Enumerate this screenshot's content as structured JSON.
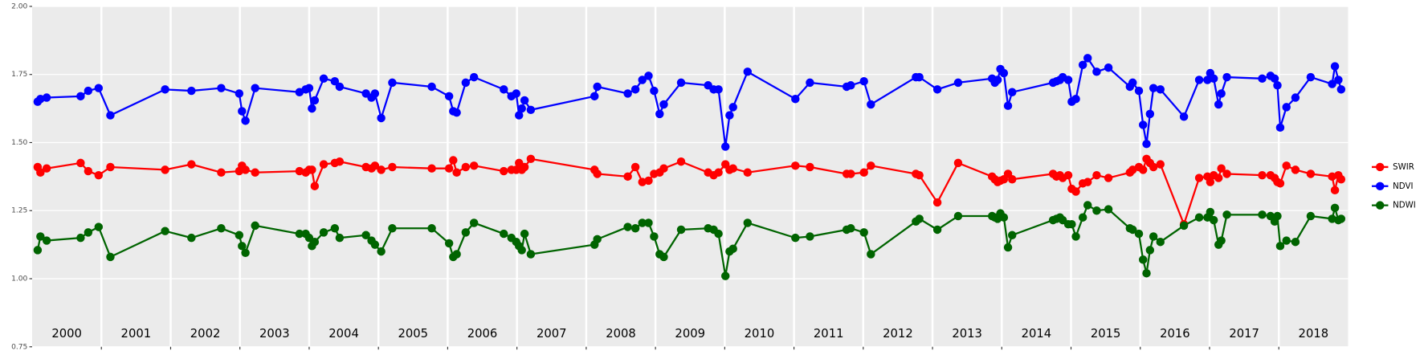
{
  "chart_data": {
    "type": "line",
    "x": [
      2000.08,
      2000.12,
      2000.21,
      2000.7,
      2000.81,
      2000.96,
      2001.13,
      2001.92,
      2002.3,
      2002.73,
      2002.99,
      2003.03,
      2003.08,
      2003.22,
      2003.86,
      2003.95,
      2004.0,
      2004.04,
      2004.08,
      2004.21,
      2004.37,
      2004.44,
      2004.82,
      2004.9,
      2004.95,
      2005.04,
      2005.2,
      2005.77,
      2006.02,
      2006.08,
      2006.13,
      2006.26,
      2006.38,
      2006.81,
      2006.92,
      2006.99,
      2007.03,
      2007.07,
      2007.11,
      2007.2,
      2008.12,
      2008.16,
      2008.6,
      2008.71,
      2008.81,
      2008.9,
      2008.98,
      2009.06,
      2009.12,
      2009.37,
      2009.76,
      2009.84,
      2009.91,
      2010.01,
      2010.07,
      2010.12,
      2010.33,
      2011.02,
      2011.23,
      2011.76,
      2011.82,
      2012.01,
      2012.11,
      2012.76,
      2012.81,
      2013.07,
      2013.37,
      2013.86,
      2013.9,
      2013.94,
      2013.98,
      2014.03,
      2014.09,
      2014.15,
      2014.74,
      2014.79,
      2014.84,
      2014.88,
      2014.96,
      2015.01,
      2015.07,
      2015.17,
      2015.24,
      2015.37,
      2015.54,
      2015.85,
      2015.89,
      2015.98,
      2016.04,
      2016.09,
      2016.14,
      2016.19,
      2016.29,
      2016.63,
      2016.85,
      2016.97,
      2017.01,
      2017.06,
      2017.13,
      2017.17,
      2017.25,
      2017.76,
      2017.88,
      2017.94,
      2017.98,
      2018.02,
      2018.11,
      2018.24,
      2018.46,
      2018.77,
      2018.81,
      2018.86,
      2018.9
    ],
    "series": [
      {
        "name": "SWIR",
        "color": "#ff0000",
        "values": [
          1.41,
          1.39,
          1.405,
          1.425,
          1.395,
          1.38,
          1.41,
          1.4,
          1.42,
          1.39,
          1.395,
          1.415,
          1.4,
          1.39,
          1.395,
          1.39,
          1.4,
          1.4,
          1.34,
          1.42,
          1.425,
          1.43,
          1.41,
          1.405,
          1.415,
          1.4,
          1.41,
          1.405,
          1.405,
          1.435,
          1.39,
          1.41,
          1.415,
          1.395,
          1.4,
          1.4,
          1.425,
          1.4,
          1.41,
          1.44,
          1.4,
          1.385,
          1.375,
          1.41,
          1.355,
          1.36,
          1.385,
          1.39,
          1.405,
          1.43,
          1.39,
          1.38,
          1.39,
          1.42,
          1.4,
          1.405,
          1.39,
          1.415,
          1.41,
          1.385,
          1.385,
          1.39,
          1.415,
          1.385,
          1.38,
          1.28,
          1.425,
          1.375,
          1.365,
          1.355,
          1.36,
          1.365,
          1.385,
          1.365,
          1.385,
          1.375,
          1.38,
          1.37,
          1.38,
          1.33,
          1.32,
          1.35,
          1.355,
          1.38,
          1.37,
          1.39,
          1.4,
          1.41,
          1.4,
          1.44,
          1.425,
          1.41,
          1.42,
          1.2,
          1.37,
          1.375,
          1.355,
          1.38,
          1.37,
          1.405,
          1.385,
          1.38,
          1.38,
          1.37,
          1.355,
          1.35,
          1.415,
          1.4,
          1.385,
          1.375,
          1.325,
          1.38,
          1.365
        ]
      },
      {
        "name": "NDVI",
        "color": "#0000ff",
        "values": [
          1.65,
          1.66,
          1.665,
          1.67,
          1.69,
          1.7,
          1.6,
          1.695,
          1.69,
          1.7,
          1.68,
          1.615,
          1.58,
          1.7,
          1.685,
          1.695,
          1.7,
          1.625,
          1.655,
          1.735,
          1.725,
          1.705,
          1.68,
          1.665,
          1.68,
          1.59,
          1.72,
          1.705,
          1.67,
          1.615,
          1.61,
          1.72,
          1.74,
          1.695,
          1.67,
          1.68,
          1.6,
          1.625,
          1.655,
          1.62,
          1.67,
          1.705,
          1.68,
          1.695,
          1.73,
          1.745,
          1.69,
          1.605,
          1.64,
          1.72,
          1.71,
          1.695,
          1.695,
          1.485,
          1.6,
          1.63,
          1.76,
          1.66,
          1.72,
          1.705,
          1.71,
          1.725,
          1.64,
          1.74,
          1.74,
          1.695,
          1.72,
          1.735,
          1.72,
          1.73,
          1.77,
          1.755,
          1.635,
          1.685,
          1.72,
          1.725,
          1.73,
          1.74,
          1.73,
          1.65,
          1.66,
          1.785,
          1.81,
          1.76,
          1.775,
          1.705,
          1.72,
          1.69,
          1.565,
          1.495,
          1.605,
          1.7,
          1.695,
          1.595,
          1.73,
          1.73,
          1.755,
          1.735,
          1.64,
          1.68,
          1.74,
          1.735,
          1.745,
          1.735,
          1.71,
          1.555,
          1.63,
          1.665,
          1.74,
          1.715,
          1.78,
          1.73,
          1.695
        ]
      },
      {
        "name": "NDWI",
        "color": "#006400",
        "values": [
          1.105,
          1.155,
          1.14,
          1.15,
          1.17,
          1.19,
          1.08,
          1.175,
          1.15,
          1.185,
          1.16,
          1.12,
          1.095,
          1.195,
          1.165,
          1.165,
          1.15,
          1.12,
          1.135,
          1.17,
          1.185,
          1.15,
          1.16,
          1.14,
          1.125,
          1.1,
          1.185,
          1.185,
          1.13,
          1.08,
          1.09,
          1.17,
          1.205,
          1.165,
          1.15,
          1.135,
          1.12,
          1.105,
          1.165,
          1.09,
          1.125,
          1.145,
          1.19,
          1.185,
          1.205,
          1.205,
          1.155,
          1.09,
          1.08,
          1.18,
          1.185,
          1.18,
          1.165,
          1.01,
          1.1,
          1.11,
          1.205,
          1.15,
          1.155,
          1.18,
          1.185,
          1.17,
          1.09,
          1.21,
          1.22,
          1.18,
          1.23,
          1.23,
          1.225,
          1.22,
          1.24,
          1.225,
          1.115,
          1.16,
          1.215,
          1.22,
          1.225,
          1.215,
          1.2,
          1.2,
          1.155,
          1.225,
          1.27,
          1.25,
          1.255,
          1.185,
          1.18,
          1.165,
          1.07,
          1.02,
          1.105,
          1.155,
          1.135,
          1.195,
          1.225,
          1.225,
          1.245,
          1.215,
          1.125,
          1.14,
          1.235,
          1.235,
          1.23,
          1.21,
          1.23,
          1.12,
          1.14,
          1.135,
          1.23,
          1.22,
          1.26,
          1.215,
          1.22
        ]
      }
    ],
    "xlim": [
      2000,
      2019
    ],
    "xticks": [
      2001,
      2002,
      2003,
      2004,
      2005,
      2006,
      2007,
      2008,
      2009,
      2010,
      2011,
      2012,
      2013,
      2014,
      2015,
      2016,
      2017,
      2018
    ],
    "ylim": [
      0.75,
      2.0
    ],
    "yticks": [
      {
        "value": 0.75,
        "label": "0.75"
      },
      {
        "value": 1.0,
        "label": "1.00"
      },
      {
        "value": 1.25,
        "label": "1.25"
      },
      {
        "value": 1.5,
        "label": "1.50"
      },
      {
        "value": 1.75,
        "label": "1.75"
      },
      {
        "value": 2.0,
        "label": "2.00"
      }
    ],
    "year_labels": [
      {
        "x": 2000.5,
        "label": "2000"
      },
      {
        "x": 2001.5,
        "label": "2001"
      },
      {
        "x": 2002.5,
        "label": "2002"
      },
      {
        "x": 2003.5,
        "label": "2003"
      },
      {
        "x": 2004.5,
        "label": "2004"
      },
      {
        "x": 2005.5,
        "label": "2005"
      },
      {
        "x": 2006.5,
        "label": "2006"
      },
      {
        "x": 2007.5,
        "label": "2007"
      },
      {
        "x": 2008.5,
        "label": "2008"
      },
      {
        "x": 2009.5,
        "label": "2009"
      },
      {
        "x": 2010.5,
        "label": "2010"
      },
      {
        "x": 2011.5,
        "label": "2011"
      },
      {
        "x": 2012.5,
        "label": "2012"
      },
      {
        "x": 2013.5,
        "label": "2013"
      },
      {
        "x": 2014.5,
        "label": "2014"
      },
      {
        "x": 2015.5,
        "label": "2015"
      },
      {
        "x": 2016.5,
        "label": "2016"
      },
      {
        "x": 2017.5,
        "label": "2017"
      },
      {
        "x": 2018.5,
        "label": "2018"
      }
    ],
    "grid": true,
    "legend": "right"
  }
}
